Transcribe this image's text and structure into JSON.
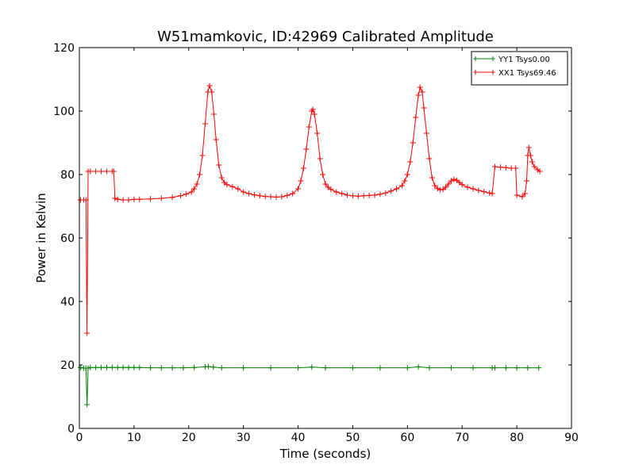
{
  "chart_data": {
    "type": "line",
    "title": "W51mamkovic, ID:42969 Calibrated Amplitude",
    "xlabel": "Time (seconds)",
    "ylabel": "Power in Kelvin",
    "xlim": [
      0,
      90
    ],
    "ylim": [
      0,
      120
    ],
    "x_ticks": [
      0,
      10,
      20,
      30,
      40,
      50,
      60,
      70,
      80,
      90
    ],
    "y_ticks": [
      0,
      20,
      40,
      60,
      80,
      100,
      120
    ],
    "x_tick_labels": [
      "0",
      "10",
      "20",
      "30",
      "40",
      "50",
      "60",
      "70",
      "80",
      "90"
    ],
    "y_tick_labels": [
      "0",
      "20",
      "40",
      "60",
      "80",
      "100",
      "120"
    ],
    "grid": false,
    "legend_position": "top-right",
    "marker": "plus",
    "series": [
      {
        "name": "YY1 Tsys0.00",
        "color": "#008000",
        "points": [
          [
            0.2,
            19.2
          ],
          [
            0.8,
            19.0
          ],
          [
            1.2,
            19.0
          ],
          [
            1.4,
            7.5
          ],
          [
            1.6,
            19.0
          ],
          [
            2.0,
            19.2
          ],
          [
            3.0,
            19.2
          ],
          [
            4.0,
            19.2
          ],
          [
            5.0,
            19.2
          ],
          [
            6.0,
            19.2
          ],
          [
            7.0,
            19.2
          ],
          [
            8.0,
            19.2
          ],
          [
            9.0,
            19.2
          ],
          [
            10.0,
            19.2
          ],
          [
            11.0,
            19.2
          ],
          [
            13.0,
            19.1
          ],
          [
            15.0,
            19.1
          ],
          [
            17.0,
            19.1
          ],
          [
            19.0,
            19.1
          ],
          [
            21.0,
            19.2
          ],
          [
            23.0,
            19.4
          ],
          [
            23.6,
            19.5
          ],
          [
            24.5,
            19.3
          ],
          [
            26.0,
            19.1
          ],
          [
            30.0,
            19.1
          ],
          [
            35.0,
            19.1
          ],
          [
            40.0,
            19.1
          ],
          [
            42.5,
            19.3
          ],
          [
            45.0,
            19.1
          ],
          [
            50.0,
            19.1
          ],
          [
            55.0,
            19.1
          ],
          [
            60.0,
            19.1
          ],
          [
            62.0,
            19.4
          ],
          [
            64.0,
            19.1
          ],
          [
            68.0,
            19.1
          ],
          [
            72.0,
            19.1
          ],
          [
            75.5,
            19.1
          ],
          [
            76.0,
            19.1
          ],
          [
            78.0,
            19.1
          ],
          [
            80.0,
            19.1
          ],
          [
            82.0,
            19.1
          ],
          [
            84.0,
            19.1
          ]
        ]
      },
      {
        "name": "XX1 Tsys69.46",
        "color": "#ff0000",
        "points": [
          [
            0.2,
            72.0
          ],
          [
            0.8,
            72.0
          ],
          [
            1.2,
            72.0
          ],
          [
            1.4,
            30.0
          ],
          [
            1.6,
            81.0
          ],
          [
            2.0,
            81.0
          ],
          [
            3.0,
            81.0
          ],
          [
            4.0,
            81.0
          ],
          [
            5.0,
            81.0
          ],
          [
            6.0,
            81.0
          ],
          [
            6.3,
            81.0
          ],
          [
            6.5,
            72.5
          ],
          [
            7.0,
            72.2
          ],
          [
            8.0,
            72.0
          ],
          [
            9.0,
            72.0
          ],
          [
            10.0,
            72.2
          ],
          [
            11.0,
            72.2
          ],
          [
            13.0,
            72.3
          ],
          [
            15.0,
            72.5
          ],
          [
            17.0,
            72.8
          ],
          [
            18.5,
            73.3
          ],
          [
            19.5,
            73.8
          ],
          [
            20.5,
            74.5
          ],
          [
            21.0,
            75.5
          ],
          [
            21.5,
            77.0
          ],
          [
            22.0,
            80.0
          ],
          [
            22.5,
            86.0
          ],
          [
            23.0,
            96.0
          ],
          [
            23.5,
            106.0
          ],
          [
            23.8,
            108.0
          ],
          [
            24.2,
            106.0
          ],
          [
            24.6,
            99.0
          ],
          [
            25.0,
            91.0
          ],
          [
            25.5,
            83.0
          ],
          [
            26.0,
            79.0
          ],
          [
            26.5,
            77.5
          ],
          [
            27.0,
            76.8
          ],
          [
            28.0,
            76.2
          ],
          [
            29.0,
            75.5
          ],
          [
            30.0,
            74.5
          ],
          [
            31.0,
            74.0
          ],
          [
            32.0,
            73.6
          ],
          [
            33.0,
            73.3
          ],
          [
            34.0,
            73.1
          ],
          [
            35.0,
            73.0
          ],
          [
            36.0,
            72.9
          ],
          [
            37.0,
            73.0
          ],
          [
            38.0,
            73.4
          ],
          [
            39.0,
            74.0
          ],
          [
            40.0,
            75.5
          ],
          [
            40.5,
            78.0
          ],
          [
            41.0,
            82.0
          ],
          [
            41.5,
            88.0
          ],
          [
            42.0,
            95.0
          ],
          [
            42.5,
            100.0
          ],
          [
            42.7,
            100.5
          ],
          [
            43.0,
            99.0
          ],
          [
            43.5,
            93.0
          ],
          [
            44.0,
            85.0
          ],
          [
            44.5,
            80.0
          ],
          [
            45.0,
            77.0
          ],
          [
            45.5,
            76.0
          ],
          [
            46.0,
            75.3
          ],
          [
            47.0,
            74.5
          ],
          [
            48.0,
            74.0
          ],
          [
            49.0,
            73.5
          ],
          [
            50.0,
            73.3
          ],
          [
            51.0,
            73.2
          ],
          [
            52.0,
            73.3
          ],
          [
            53.0,
            73.4
          ],
          [
            54.0,
            73.5
          ],
          [
            55.0,
            73.8
          ],
          [
            56.0,
            74.2
          ],
          [
            57.0,
            74.8
          ],
          [
            58.0,
            75.5
          ],
          [
            59.0,
            76.5
          ],
          [
            59.5,
            78.0
          ],
          [
            60.0,
            80.0
          ],
          [
            60.5,
            84.0
          ],
          [
            61.0,
            90.0
          ],
          [
            61.5,
            98.0
          ],
          [
            62.0,
            105.0
          ],
          [
            62.3,
            107.5
          ],
          [
            62.7,
            106.0
          ],
          [
            63.0,
            101.0
          ],
          [
            63.5,
            93.0
          ],
          [
            64.0,
            85.0
          ],
          [
            64.5,
            79.0
          ],
          [
            65.0,
            76.5
          ],
          [
            65.5,
            75.6
          ],
          [
            66.0,
            75.2
          ],
          [
            66.5,
            75.3
          ],
          [
            67.0,
            76.0
          ],
          [
            67.5,
            77.0
          ],
          [
            68.0,
            78.0
          ],
          [
            68.5,
            78.5
          ],
          [
            69.0,
            78.2
          ],
          [
            69.5,
            77.5
          ],
          [
            70.0,
            76.8
          ],
          [
            71.0,
            76.0
          ],
          [
            72.0,
            75.5
          ],
          [
            73.0,
            75.0
          ],
          [
            74.0,
            74.6
          ],
          [
            75.0,
            74.2
          ],
          [
            75.5,
            74.0
          ],
          [
            76.0,
            82.5
          ],
          [
            77.0,
            82.3
          ],
          [
            78.0,
            82.2
          ],
          [
            79.0,
            82.0
          ],
          [
            79.8,
            82.0
          ],
          [
            80.0,
            73.5
          ],
          [
            81.0,
            73.0
          ],
          [
            81.5,
            74.0
          ],
          [
            81.8,
            78.0
          ],
          [
            82.0,
            86.0
          ],
          [
            82.2,
            88.5
          ],
          [
            82.5,
            86.0
          ],
          [
            82.8,
            84.0
          ],
          [
            83.2,
            82.5
          ],
          [
            83.8,
            81.5
          ],
          [
            84.2,
            81.0
          ]
        ]
      }
    ]
  }
}
